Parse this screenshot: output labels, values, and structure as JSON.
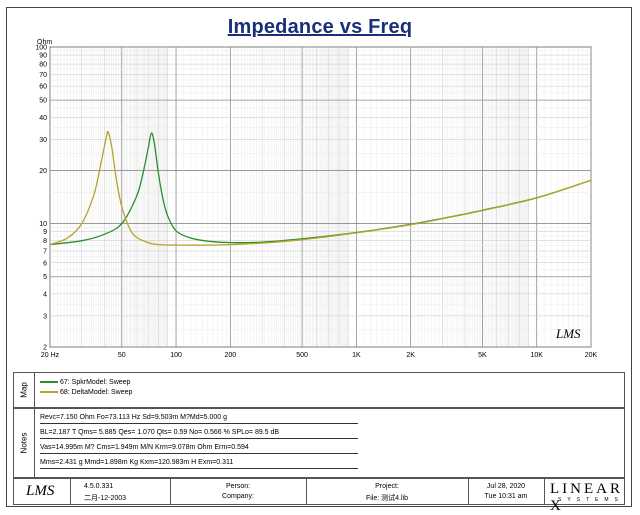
{
  "chart_data": {
    "type": "line",
    "title": "Impedance vs Freq",
    "ylabel": "Ohm",
    "x_scale": "log",
    "y_scale": "log",
    "xlim": [
      20,
      20000
    ],
    "ylim": [
      2,
      100
    ],
    "x_ticks": [
      "20 Hz",
      "50",
      "100",
      "200",
      "500",
      "1K",
      "2K",
      "5K",
      "10K",
      "20K"
    ],
    "y_ticks": [
      "100",
      "90",
      "80",
      "70",
      "60",
      "50",
      "40",
      "30",
      "20",
      "10",
      "9",
      "8",
      "7",
      "6",
      "5",
      "4",
      "3",
      "2"
    ],
    "grid": true,
    "watermark": "LMS",
    "series": [
      {
        "name": "67: SpkrModel: Sweep",
        "color": "#2e8b2e",
        "x": [
          20,
          30,
          40,
          50,
          60,
          65,
          70,
          73,
          76,
          80,
          85,
          90,
          100,
          120,
          150,
          200,
          300,
          500,
          1000,
          2000,
          3000,
          5000,
          10000,
          20000
        ],
        "y": [
          7.6,
          8.0,
          8.7,
          10.0,
          14.0,
          18.5,
          26.5,
          32.5,
          28.0,
          19.0,
          13.5,
          11.0,
          9.1,
          8.3,
          7.95,
          7.8,
          7.85,
          8.2,
          8.9,
          9.9,
          10.7,
          11.9,
          14.0,
          17.6
        ]
      },
      {
        "name": "68: DeltaModel: Sweep",
        "color": "#b5a52a",
        "x": [
          20,
          25,
          30,
          35,
          38,
          41,
          42,
          44,
          47,
          50,
          55,
          60,
          70,
          80,
          100,
          150,
          200,
          300,
          500,
          1000,
          2000,
          3000,
          5000,
          10000,
          20000
        ],
        "y": [
          7.6,
          8.3,
          10.0,
          14.5,
          21.0,
          30.5,
          33.0,
          27.0,
          17.0,
          12.5,
          9.5,
          8.4,
          7.8,
          7.6,
          7.55,
          7.55,
          7.6,
          7.75,
          8.1,
          8.85,
          9.85,
          10.65,
          11.85,
          13.95,
          17.6
        ]
      }
    ]
  },
  "map": {
    "label": "Map",
    "items": [
      "67: SpkrModel: Sweep",
      "68: DeltaModel: Sweep"
    ]
  },
  "notes": {
    "label": "Notes",
    "lines": [
      "Revc=7.150 Ohm  Fo=73.113 Hz  Sd=9.503m M?Md=5.000 g",
      "BL=2.187 T   Qms= 5.885  Qes= 1.070  Qts=  0.59   No= 0.566 %  SPLo= 89.5 dB",
      "Vas=14.995m M? Cms=1.949m M/N  Krm=9.078m Ohm  Erm=0.594",
      "Mms=2.431 g  Mmd=1.898m Kg  Kxm=120.983m H  Exm=0.311"
    ]
  },
  "footer": {
    "logo": "LMS",
    "version": "4.5.0.331",
    "date_cn": "二月-12-2003",
    "person_label": "Person:",
    "company_label": "Company:",
    "project_label": "Project:",
    "file_label": "File: 测试4.lib",
    "date": "Jul 28, 2020",
    "time": "Tue 10:31 am",
    "brand": "LINEAR X",
    "brand_sub": "SYSTEMS"
  }
}
